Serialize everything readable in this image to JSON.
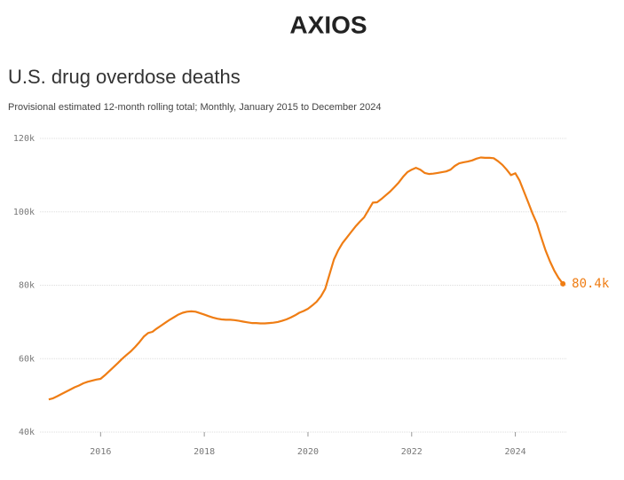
{
  "brand": "AXIOS",
  "chart_data": {
    "type": "line",
    "title": "U.S. drug overdose deaths",
    "subtitle": "Provisional estimated 12-month rolling total; Monthly, January 2015 to December 2024",
    "x": [
      2015,
      2015.083,
      2015.167,
      2015.25,
      2015.333,
      2015.417,
      2015.5,
      2015.583,
      2015.667,
      2015.75,
      2015.833,
      2015.917,
      2016,
      2016.083,
      2016.167,
      2016.25,
      2016.333,
      2016.417,
      2016.5,
      2016.583,
      2016.667,
      2016.75,
      2016.833,
      2016.917,
      2017,
      2017.083,
      2017.167,
      2017.25,
      2017.333,
      2017.417,
      2017.5,
      2017.583,
      2017.667,
      2017.75,
      2017.833,
      2017.917,
      2018,
      2018.083,
      2018.167,
      2018.25,
      2018.333,
      2018.417,
      2018.5,
      2018.583,
      2018.667,
      2018.75,
      2018.833,
      2018.917,
      2019,
      2019.083,
      2019.167,
      2019.25,
      2019.333,
      2019.417,
      2019.5,
      2019.583,
      2019.667,
      2019.75,
      2019.833,
      2019.917,
      2020,
      2020.083,
      2020.167,
      2020.25,
      2020.333,
      2020.417,
      2020.5,
      2020.583,
      2020.667,
      2020.75,
      2020.833,
      2020.917,
      2021,
      2021.083,
      2021.167,
      2021.25,
      2021.333,
      2021.417,
      2021.5,
      2021.583,
      2021.667,
      2021.75,
      2021.833,
      2021.917,
      2022,
      2022.083,
      2022.167,
      2022.25,
      2022.333,
      2022.417,
      2022.5,
      2022.583,
      2022.667,
      2022.75,
      2022.833,
      2022.917,
      2023,
      2023.083,
      2023.167,
      2023.25,
      2023.333,
      2023.417,
      2023.5,
      2023.583,
      2023.667,
      2023.75,
      2023.833,
      2023.917,
      2024,
      2024.083,
      2024.167,
      2024.25,
      2024.333,
      2024.417,
      2024.5,
      2024.583,
      2024.667,
      2024.75,
      2024.833,
      2024.917
    ],
    "series": [
      {
        "name": "Overdose deaths",
        "color": "#ef7d14",
        "values": [
          48900,
          49200,
          49800,
          50400,
          51000,
          51600,
          52200,
          52700,
          53300,
          53700,
          54000,
          54300,
          54500,
          55500,
          56600,
          57700,
          58800,
          60000,
          61000,
          62000,
          63200,
          64500,
          66000,
          67000,
          67300,
          68200,
          69000,
          69800,
          70600,
          71300,
          72000,
          72500,
          72800,
          72900,
          72800,
          72400,
          72000,
          71600,
          71200,
          70900,
          70700,
          70600,
          70600,
          70500,
          70300,
          70100,
          69900,
          69700,
          69700,
          69600,
          69600,
          69700,
          69800,
          70000,
          70300,
          70700,
          71200,
          71800,
          72500,
          73000,
          73600,
          74500,
          75500,
          77000,
          79000,
          83000,
          87000,
          89500,
          91500,
          93000,
          94500,
          96000,
          97300,
          98500,
          100500,
          102500,
          102600,
          103500,
          104500,
          105500,
          106700,
          108000,
          109500,
          110800,
          111500,
          112000,
          111500,
          110600,
          110300,
          110400,
          110600,
          110800,
          111000,
          111500,
          112500,
          113200,
          113500,
          113700,
          114000,
          114500,
          114800,
          114700,
          114700,
          114600,
          113800,
          112800,
          111500,
          110000,
          110500,
          108500,
          105500,
          102500,
          99500,
          96800,
          93000,
          89500,
          86500,
          84000,
          82000,
          80400
        ],
        "end_label": "80.4k"
      }
    ],
    "xlim": [
      2014.83,
      2025
    ],
    "xticks": [
      2016,
      2018,
      2020,
      2022,
      2024
    ],
    "ylim": [
      40000,
      120000
    ],
    "yticks": [
      {
        "value": 40000,
        "label": "40k"
      },
      {
        "value": 60000,
        "label": "60k"
      },
      {
        "value": 80000,
        "label": "80k"
      },
      {
        "value": 100000,
        "label": "100k"
      },
      {
        "value": 120000,
        "label": "120k"
      }
    ],
    "grid": true
  }
}
